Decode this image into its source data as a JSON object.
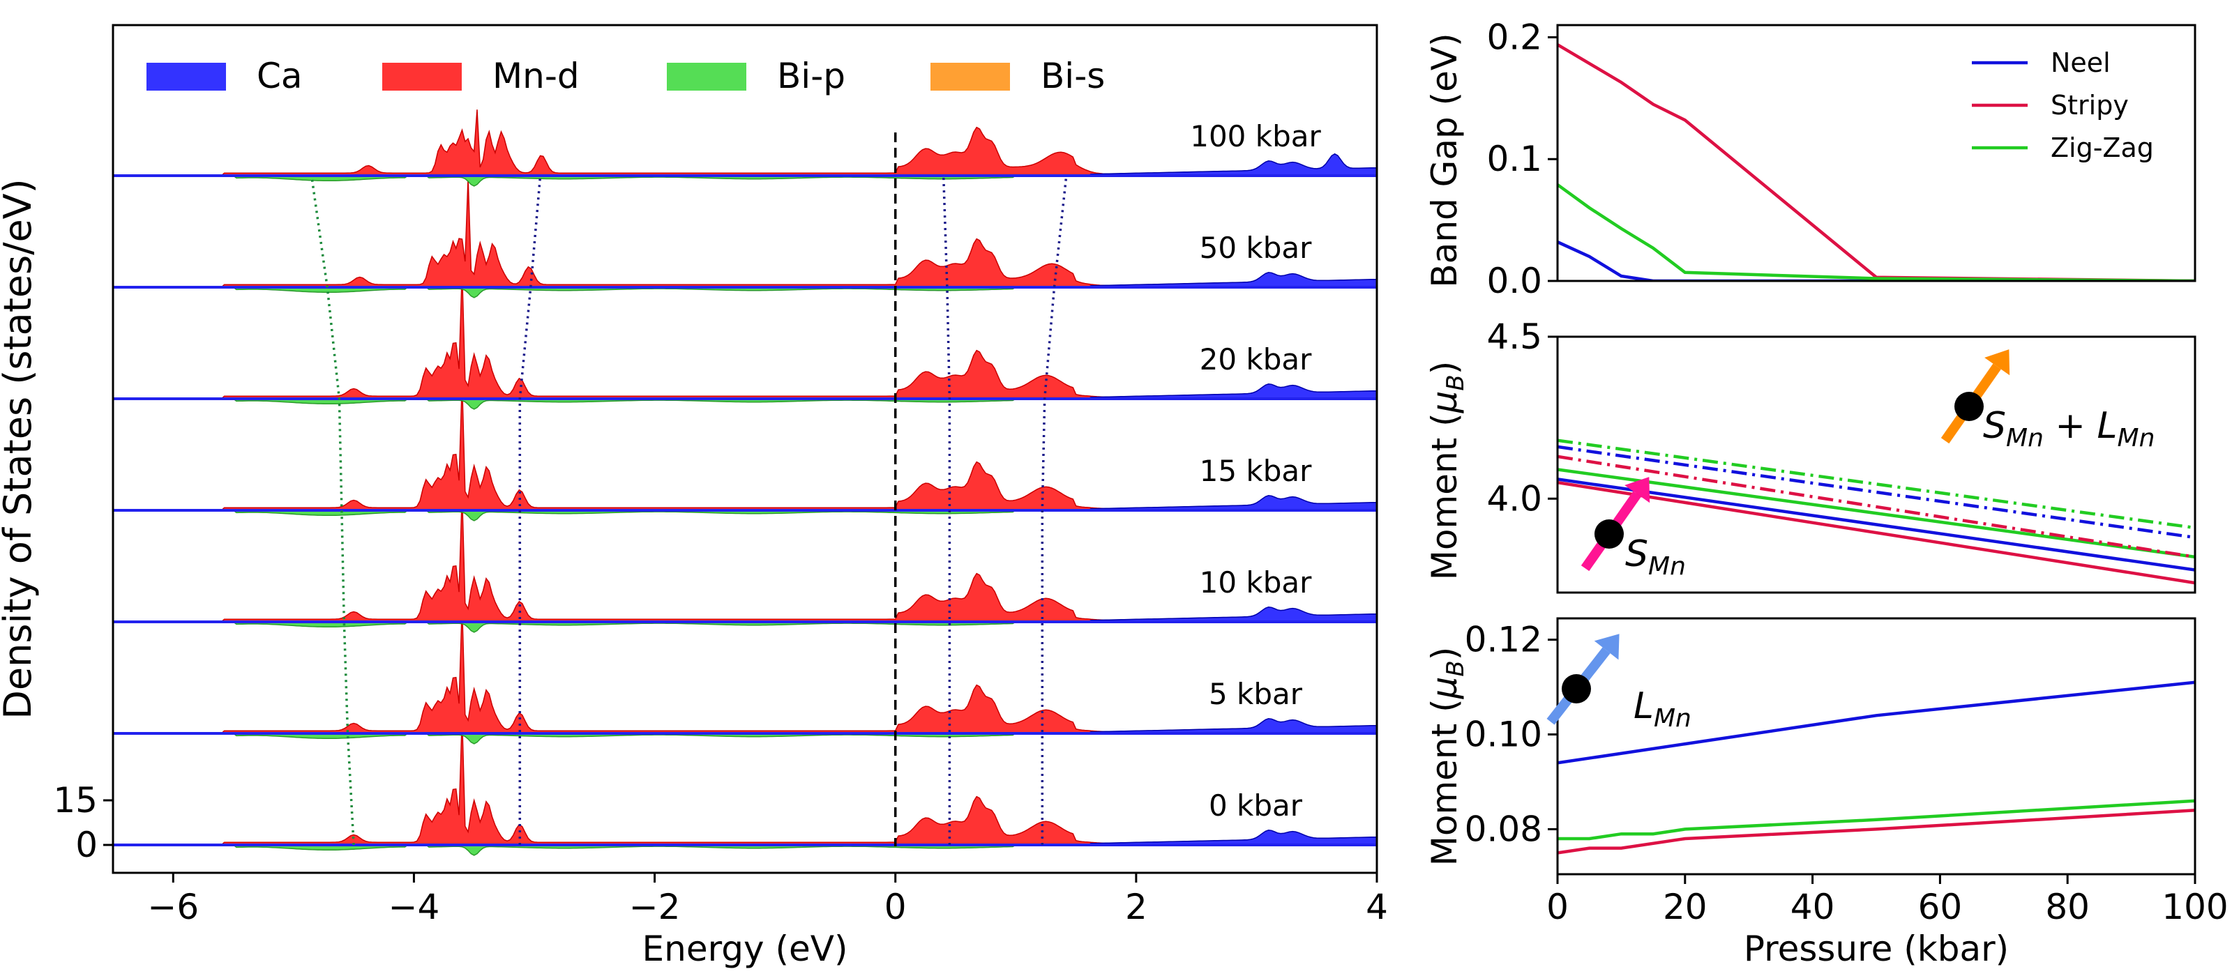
{
  "chart_data": [
    {
      "type": "area",
      "title": "",
      "xlabel": "Energy (eV)",
      "ylabel": "Density of States (states/eV)",
      "xlim": [
        -6.5,
        4
      ],
      "xticks": [
        -6,
        -4,
        -2,
        0,
        2,
        4
      ],
      "xtick_labels": [
        "−6",
        "−4",
        "−2",
        "0",
        "2",
        "4"
      ],
      "yticks": [
        0,
        15
      ],
      "ytick_labels": [
        "0",
        "15"
      ],
      "fermi_level": 0,
      "legend": [
        {
          "name": "Ca",
          "color": "#3333ff"
        },
        {
          "name": "Mn-d",
          "color": "#ff3333"
        },
        {
          "name": "Bi-p",
          "color": "#55dd55"
        },
        {
          "name": "Bi-s",
          "color": "#ffa033"
        }
      ],
      "panels": [
        {
          "label": "0 kbar",
          "offset": 0
        },
        {
          "label": "5 kbar",
          "offset": 1
        },
        {
          "label": "10 kbar",
          "offset": 2
        },
        {
          "label": "15 kbar",
          "offset": 3
        },
        {
          "label": "20 kbar",
          "offset": 4
        },
        {
          "label": "50 kbar",
          "offset": 5
        },
        {
          "label": "100 kbar",
          "offset": 6
        }
      ],
      "peak_shift_lines": [
        {
          "color": "#1a8a3a",
          "energies": [
            -4.5,
            -4.55,
            -4.58,
            -4.6,
            -4.62,
            -4.72,
            -4.85
          ]
        },
        {
          "color": "#1a1a8a",
          "energies": [
            -3.12,
            -3.12,
            -3.12,
            -3.12,
            -3.12,
            -3.03,
            -2.95
          ]
        },
        {
          "color": "#1a1a8a",
          "energies": [
            0.45,
            0.45,
            0.45,
            0.45,
            0.45,
            0.43,
            0.4
          ]
        },
        {
          "color": "#1a1a8a",
          "energies": [
            1.22,
            1.22,
            1.22,
            1.22,
            1.24,
            1.32,
            1.42
          ]
        }
      ]
    },
    {
      "type": "line",
      "xlabel": "",
      "ylabel": "Band Gap (eV)",
      "xlim": [
        0,
        100
      ],
      "ylim": [
        0,
        0.21
      ],
      "yticks": [
        0.0,
        0.1,
        0.2
      ],
      "ytick_labels": [
        "0.0",
        "0.1",
        "0.2"
      ],
      "series": [
        {
          "name": "Neel",
          "color": "#1111dd",
          "x": [
            0,
            5,
            10,
            15,
            20,
            50,
            100
          ],
          "y": [
            0.032,
            0.02,
            0.004,
            0.0,
            0.0,
            0.0,
            0.0
          ]
        },
        {
          "name": "Stripy",
          "color": "#dd1144",
          "x": [
            0,
            10,
            15,
            20,
            50,
            100
          ],
          "y": [
            0.194,
            0.163,
            0.145,
            0.132,
            0.003,
            0.0
          ]
        },
        {
          "name": "Zig-Zag",
          "color": "#22cc22",
          "x": [
            0,
            5,
            10,
            15,
            20,
            50,
            100
          ],
          "y": [
            0.079,
            0.06,
            0.043,
            0.027,
            0.007,
            0.002,
            0.0
          ]
        }
      ]
    },
    {
      "type": "line",
      "xlabel": "",
      "ylabel": "Moment (μB)",
      "xlim": [
        0,
        100
      ],
      "ylim": [
        3.71,
        4.5
      ],
      "yticks": [
        4.0,
        4.5
      ],
      "ytick_labels": [
        "4.0",
        "4.5"
      ],
      "annotations": [
        {
          "text": "SMn",
          "base": "S",
          "sub": "Mn",
          "color": "#ff1493"
        },
        {
          "text": "SMn + LMn",
          "base": "S",
          "sub": "Mn",
          "mid": " + L",
          "sub2": "Mn",
          "color": "#ff8c00"
        }
      ],
      "series": [
        {
          "name": "Neel S",
          "color": "#1111dd",
          "dash": "solid",
          "x": [
            0,
            100
          ],
          "y": [
            4.06,
            3.78
          ]
        },
        {
          "name": "Stripy S",
          "color": "#dd1144",
          "dash": "solid",
          "x": [
            0,
            100
          ],
          "y": [
            4.05,
            3.74
          ]
        },
        {
          "name": "Zig-Zag S",
          "color": "#22cc22",
          "dash": "solid",
          "x": [
            0,
            100
          ],
          "y": [
            4.09,
            3.82
          ]
        },
        {
          "name": "Neel S+L",
          "color": "#1111dd",
          "dash": "dashdot",
          "x": [
            0,
            100
          ],
          "y": [
            4.16,
            3.88
          ]
        },
        {
          "name": "Stripy S+L",
          "color": "#dd1144",
          "dash": "dashdot",
          "x": [
            0,
            100
          ],
          "y": [
            4.13,
            3.82
          ]
        },
        {
          "name": "Zig-Zag S+L",
          "color": "#22cc22",
          "dash": "dashdot",
          "x": [
            0,
            100
          ],
          "y": [
            4.18,
            3.91
          ]
        }
      ]
    },
    {
      "type": "line",
      "xlabel": "Pressure (kbar)",
      "ylabel": "Moment (μB)",
      "xlim": [
        0,
        100
      ],
      "ylim": [
        0.0705,
        0.1245
      ],
      "yticks": [
        0.08,
        0.1,
        0.12
      ],
      "ytick_labels": [
        "0.08",
        "0.10",
        "0.12"
      ],
      "xticks": [
        0,
        20,
        40,
        60,
        80,
        100
      ],
      "xtick_labels": [
        "0",
        "20",
        "40",
        "60",
        "80",
        "100"
      ],
      "annotations": [
        {
          "text": "LMn",
          "base": "L",
          "sub": "Mn",
          "color": "#6495ed"
        }
      ],
      "series": [
        {
          "name": "Neel L",
          "color": "#1111dd",
          "x": [
            0,
            20,
            50,
            100
          ],
          "y": [
            0.094,
            0.098,
            0.104,
            0.111
          ]
        },
        {
          "name": "Zig-Zag L",
          "color": "#22cc22",
          "x": [
            0,
            5,
            10,
            15,
            20,
            50,
            100
          ],
          "y": [
            0.078,
            0.078,
            0.079,
            0.079,
            0.08,
            0.082,
            0.086
          ]
        },
        {
          "name": "Stripy L",
          "color": "#dd1144",
          "x": [
            0,
            5,
            10,
            20,
            50,
            100
          ],
          "y": [
            0.075,
            0.076,
            0.076,
            0.078,
            0.08,
            0.084
          ]
        }
      ]
    }
  ]
}
